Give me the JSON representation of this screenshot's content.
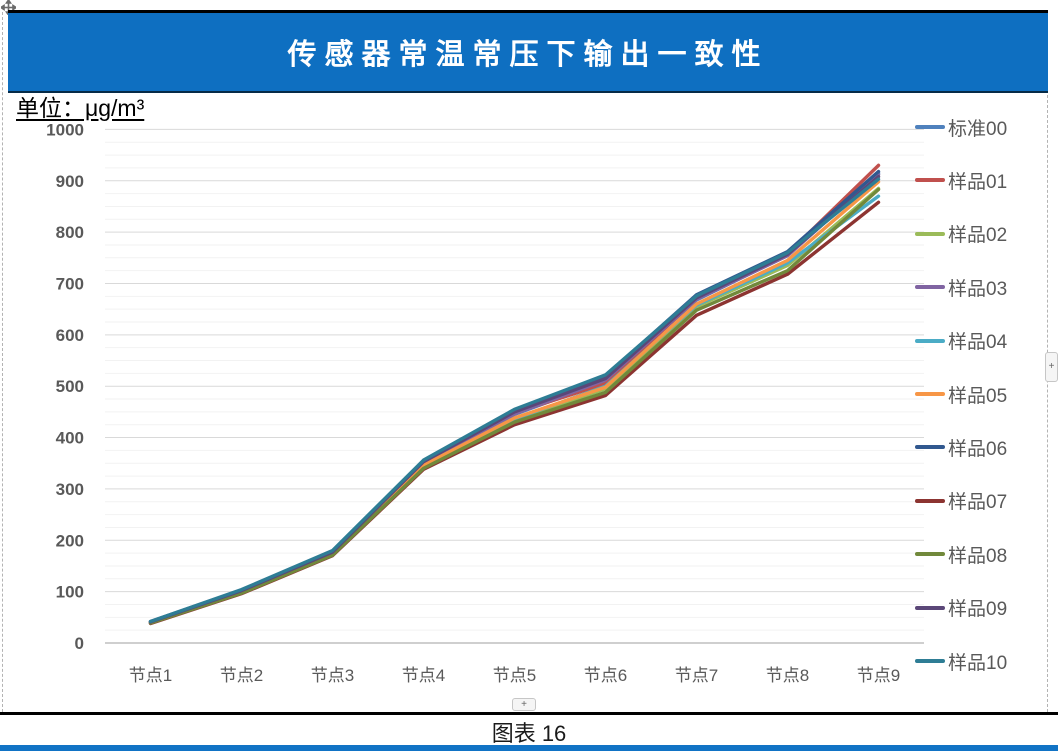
{
  "page": {
    "title": "传感器常温常压下输出一致性",
    "unit_label": "单位：μg/m³",
    "caption": "图表 16",
    "plus_badge": "+"
  },
  "colors": {
    "banner_blue": "#0E6FC1",
    "axis_text": "#595959",
    "grid_major": "#D9D9D9",
    "grid_minor": "#F2F2F2",
    "axis_line": "#BFBFBF"
  },
  "chart_data": {
    "type": "line",
    "title": "传感器常温常压下输出一致性",
    "unit": "μg/m³",
    "categories": [
      "节点1",
      "节点2",
      "节点3",
      "节点4",
      "节点5",
      "节点6",
      "节点7",
      "节点8",
      "节点9"
    ],
    "y_ticks": [
      0,
      100,
      200,
      300,
      400,
      500,
      600,
      700,
      800,
      900,
      1000
    ],
    "ylim": [
      0,
      1000
    ],
    "minor_unit": 25,
    "grid": "major-and-minor-horizontal",
    "legend_position": "right",
    "series": [
      {
        "name": "标准00",
        "color": "#4F81BD",
        "values": [
          40,
          100,
          175,
          350,
          445,
          510,
          668,
          755,
          915
        ]
      },
      {
        "name": "样品01",
        "color": "#C0504D",
        "values": [
          41,
          102,
          178,
          352,
          448,
          505,
          670,
          758,
          930
        ]
      },
      {
        "name": "样品02",
        "color": "#9BBB59",
        "values": [
          39,
          98,
          172,
          345,
          435,
          495,
          655,
          735,
          885
        ]
      },
      {
        "name": "样品03",
        "color": "#8064A2",
        "values": [
          40,
          101,
          176,
          351,
          446,
          512,
          669,
          754,
          912
        ]
      },
      {
        "name": "样品04",
        "color": "#4BACC6",
        "values": [
          39,
          99,
          173,
          344,
          436,
          500,
          658,
          740,
          870
        ]
      },
      {
        "name": "样品05",
        "color": "#F79646",
        "values": [
          40,
          100,
          174,
          346,
          438,
          498,
          660,
          745,
          898
        ]
      },
      {
        "name": "样品06",
        "color": "#31588F",
        "values": [
          42,
          103,
          179,
          355,
          452,
          520,
          678,
          762,
          918
        ]
      },
      {
        "name": "样品07",
        "color": "#8C3431",
        "values": [
          38,
          96,
          170,
          338,
          425,
          482,
          638,
          718,
          858
        ]
      },
      {
        "name": "样品08",
        "color": "#71893B",
        "values": [
          39,
          97,
          171,
          340,
          430,
          488,
          648,
          725,
          883
        ]
      },
      {
        "name": "样品09",
        "color": "#5B4778",
        "values": [
          41,
          102,
          177,
          353,
          450,
          515,
          672,
          757,
          908
        ]
      },
      {
        "name": "样品10",
        "color": "#2E7D95",
        "values": [
          42,
          104,
          180,
          356,
          455,
          522,
          676,
          760,
          903
        ]
      }
    ]
  }
}
